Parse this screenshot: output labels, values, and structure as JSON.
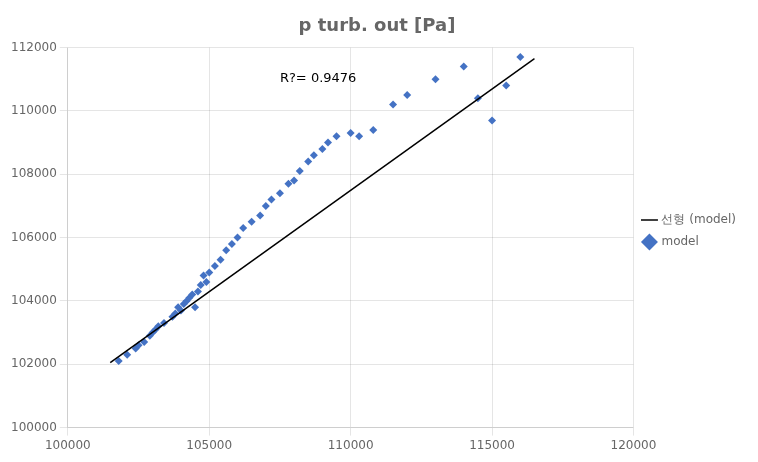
{
  "chart_data": {
    "type": "scatter",
    "title": "p turb. out [Pa]",
    "xlim": [
      100000,
      120000
    ],
    "ylim": [
      100000,
      112000
    ],
    "xticks": [
      100000,
      105000,
      110000,
      115000,
      120000
    ],
    "yticks": [
      100000,
      102000,
      104000,
      106000,
      108000,
      110000,
      112000
    ],
    "grid": true,
    "legend": "right",
    "annotations": [
      {
        "text": "R?= 0.9476",
        "x": 107500,
        "y": 110800
      }
    ],
    "series": [
      {
        "name": "model",
        "type": "scatter",
        "color": "#4472C4",
        "marker": "diamond",
        "x": [
          101800,
          102100,
          102400,
          102500,
          102700,
          102900,
          103000,
          103100,
          103200,
          103400,
          103700,
          103800,
          103900,
          104000,
          104100,
          104200,
          104300,
          104400,
          104500,
          104600,
          104700,
          104800,
          104900,
          105000,
          105200,
          105400,
          105600,
          105800,
          106000,
          106200,
          106500,
          106800,
          107000,
          107200,
          107500,
          107800,
          108000,
          108200,
          108500,
          108700,
          109000,
          109200,
          109500,
          110000,
          110300,
          110800,
          111500,
          112000,
          113000,
          114000,
          114500,
          115000,
          115500,
          116000
        ],
        "values": [
          102100,
          102300,
          102500,
          102600,
          102700,
          102900,
          103000,
          103100,
          103200,
          103300,
          103500,
          103600,
          103800,
          103700,
          103900,
          104000,
          104100,
          104200,
          103800,
          104300,
          104500,
          104800,
          104600,
          104900,
          105100,
          105300,
          105600,
          105800,
          106000,
          106300,
          106500,
          106700,
          107000,
          107200,
          107400,
          107700,
          107800,
          108100,
          108400,
          108600,
          108800,
          109000,
          109200,
          109300,
          109200,
          109400,
          110200,
          110500,
          111000,
          111400,
          110400,
          109700,
          110800,
          111700
        ]
      },
      {
        "name": "선형 (model)",
        "type": "line",
        "color": "#000000",
        "line_style": "solid",
        "x": [
          101500,
          116500
        ],
        "values": [
          102050,
          111650
        ]
      }
    ]
  }
}
